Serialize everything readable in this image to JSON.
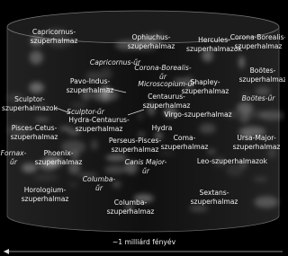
{
  "labels": [
    {
      "lines": [
        "Capricornus-",
        "szuperhalmaz"
      ]
    },
    {
      "lines": [
        "Ophiuchus-",
        "szuperhalmaz"
      ]
    },
    {
      "lines": [
        "Hercules-",
        "szuperhalmazok"
      ]
    },
    {
      "lines": [
        "Corona-Borealis-",
        "szuperhalmaz"
      ]
    },
    {
      "lines": [
        "Capricornus-űr"
      ],
      "italic": true
    },
    {
      "lines": [
        "Corona-Borealis-",
        "űr"
      ],
      "italic": true
    },
    {
      "lines": [
        "Boötes-",
        "szuperhalmaz"
      ]
    },
    {
      "lines": [
        "Pavo-Indus-",
        "szuperhalmaz"
      ]
    },
    {
      "lines": [
        "Microscopium-űr"
      ],
      "italic": true
    },
    {
      "lines": [
        "Shapley-",
        "szuperhalmaz"
      ]
    },
    {
      "lines": [
        "Boötes-űr"
      ],
      "italic": true
    },
    {
      "lines": [
        "Sculptor-",
        "szuperhalmazok"
      ]
    },
    {
      "lines": [
        "Sculptor-űr"
      ],
      "italic": true
    },
    {
      "lines": [
        "Centaurus-",
        "szuperhalmaz"
      ]
    },
    {
      "lines": [
        "Virgo-szuperhalmaz"
      ]
    },
    {
      "lines": [
        "Pisces-Cetus-",
        "szuperhalmaz"
      ]
    },
    {
      "lines": [
        "Hydra-Centaurus-",
        "szuperhalmaz"
      ]
    },
    {
      "lines": [
        "Hydra"
      ]
    },
    {
      "lines": [
        "Perseus-Pisces-",
        "szuperhalmaz"
      ]
    },
    {
      "lines": [
        "Coma-",
        "szuperhalmaz"
      ]
    },
    {
      "lines": [
        "Ursa-Major-",
        "szuperhalmaz"
      ]
    },
    {
      "lines": [
        "Fornax-",
        "űr"
      ],
      "italic": true
    },
    {
      "lines": [
        "Phoenix-",
        "szuperhalmaz"
      ]
    },
    {
      "lines": [
        "Canis Major-",
        "űr"
      ],
      "italic": true
    },
    {
      "lines": [
        "Leo-szuperhalmazok"
      ]
    },
    {
      "lines": [
        "Columba-",
        "űr"
      ],
      "italic": true
    },
    {
      "lines": [
        "Horologium-",
        "szuperhalmaz"
      ]
    },
    {
      "lines": [
        "Sextans-",
        "szuperhalmaz"
      ]
    },
    {
      "lines": [
        "Columba-",
        "szuperhalmaz"
      ]
    }
  ],
  "scale": "~1 milliárd fényév"
}
